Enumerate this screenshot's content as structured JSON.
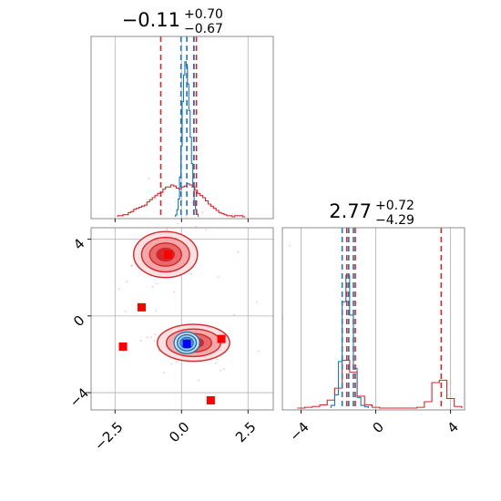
{
  "chart_data": {
    "type": "corner",
    "parameters": [
      {
        "title": {
          "value": "−0.11",
          "plus": "+0.70",
          "minus": "−0.67"
        },
        "xlim": [
          -3.4,
          3.45
        ],
        "ticks": [
          -2.5,
          0.0,
          2.5
        ],
        "tick_labels": [
          "−2.5",
          "0.0",
          "2.5"
        ],
        "quantiles_red": [
          -0.78,
          0.46,
          0.56
        ],
        "quantiles_blue": [
          -0.02,
          0.2,
          0.47
        ]
      },
      {
        "title": {
          "value": "2.77",
          "plus": "+0.72",
          "minus": "−4.29"
        },
        "xlim": [
          -5.0,
          4.75
        ],
        "ticks": [
          -4,
          0,
          4
        ],
        "tick_labels": [
          "−4",
          "0",
          "4"
        ],
        "quantiles_red": [
          -1.55,
          -1.1,
          3.5
        ],
        "quantiles_blue": [
          -1.8,
          -1.45,
          -1.2
        ]
      }
    ],
    "joint": {
      "xlim": [
        -3.4,
        3.45
      ],
      "ylim": [
        -4.9,
        4.6
      ],
      "yticks": [
        -4,
        0,
        4
      ],
      "ytick_labels": [
        "−4",
        "0",
        "4"
      ],
      "red_points": [
        [
          -0.5,
          3.2
        ],
        [
          -1.5,
          0.45
        ],
        [
          1.5,
          -1.2
        ],
        [
          -2.2,
          -1.6
        ],
        [
          1.1,
          -4.4
        ]
      ],
      "blue_point": [
        0.2,
        -1.45
      ],
      "red_modes": [
        {
          "center": [
            -0.6,
            3.2
          ],
          "spread": [
            0.75,
            0.75
          ]
        },
        {
          "center": [
            0.45,
            -1.4
          ],
          "spread": [
            0.85,
            0.6
          ]
        }
      ],
      "blue_mode": {
        "center": [
          0.2,
          -1.4
        ],
        "spread": [
          0.3,
          0.35
        ]
      }
    },
    "marginals": {
      "param1_red": {
        "bins": [
          -2.35,
          -2.25,
          -2.15,
          -2.05,
          -1.95,
          -1.85,
          -1.75,
          -1.65,
          -1.55,
          -1.45,
          -1.35,
          -1.25,
          -1.15,
          -1.05,
          -0.95,
          -0.85,
          -0.75,
          -0.65,
          -0.55,
          -0.45,
          -0.35,
          -0.25,
          -0.15,
          -0.05,
          0.05,
          0.15,
          0.25,
          0.35,
          0.45,
          0.55,
          0.65,
          0.75,
          0.85,
          0.95,
          1.05,
          1.15,
          1.25,
          1.35,
          1.45,
          1.55,
          1.65,
          1.75,
          1.85,
          1.95,
          2.05,
          2.15,
          2.25,
          2.35
        ],
        "counts": [
          1,
          1,
          2,
          2,
          4,
          5,
          7,
          8,
          9,
          10,
          11,
          14,
          16,
          18,
          20,
          22,
          23,
          26,
          28,
          28,
          30,
          29,
          27,
          26,
          28,
          29,
          31,
          30,
          28,
          25,
          22,
          20,
          18,
          15,
          12,
          10,
          8,
          6,
          4,
          3,
          2,
          1,
          1,
          0,
          1,
          1,
          1,
          0
        ]
      },
      "param1_blue": {
        "bins": [
          -0.2,
          -0.15,
          -0.1,
          -0.05,
          0.0,
          0.05,
          0.1,
          0.15,
          0.2,
          0.25,
          0.3,
          0.35,
          0.4,
          0.45,
          0.5,
          0.55,
          0.6
        ],
        "counts": [
          2,
          8,
          20,
          45,
          80,
          130,
          160,
          175,
          170,
          150,
          120,
          90,
          60,
          35,
          18,
          8,
          3
        ]
      },
      "param2_red": {
        "bins": [
          -4.0,
          -3.6,
          -3.2,
          -2.8,
          -2.4,
          -2.0,
          -1.6,
          -1.2,
          -0.8,
          -0.4,
          0.0,
          0.4,
          0.8,
          1.2,
          1.6,
          2.0,
          2.4,
          2.8,
          3.2,
          3.6,
          4.0,
          4.4
        ],
        "counts": [
          0,
          1,
          2,
          4,
          10,
          25,
          60,
          45,
          15,
          4,
          1,
          0,
          0,
          0,
          0,
          0,
          1,
          8,
          32,
          35,
          12,
          2
        ]
      },
      "param2_blue": {
        "bins": [
          -2.3,
          -2.1,
          -1.9,
          -1.7,
          -1.5,
          -1.3,
          -1.1,
          -0.9,
          -0.7,
          -0.5
        ],
        "counts": [
          2,
          10,
          35,
          80,
          100,
          70,
          30,
          8,
          2,
          1
        ]
      }
    },
    "colors": {
      "red": "#d62728",
      "blue": "#1f77b4",
      "blue_marker": "#0000ff",
      "red_marker": "#ff0000",
      "grid": "#b0b0b0"
    }
  }
}
